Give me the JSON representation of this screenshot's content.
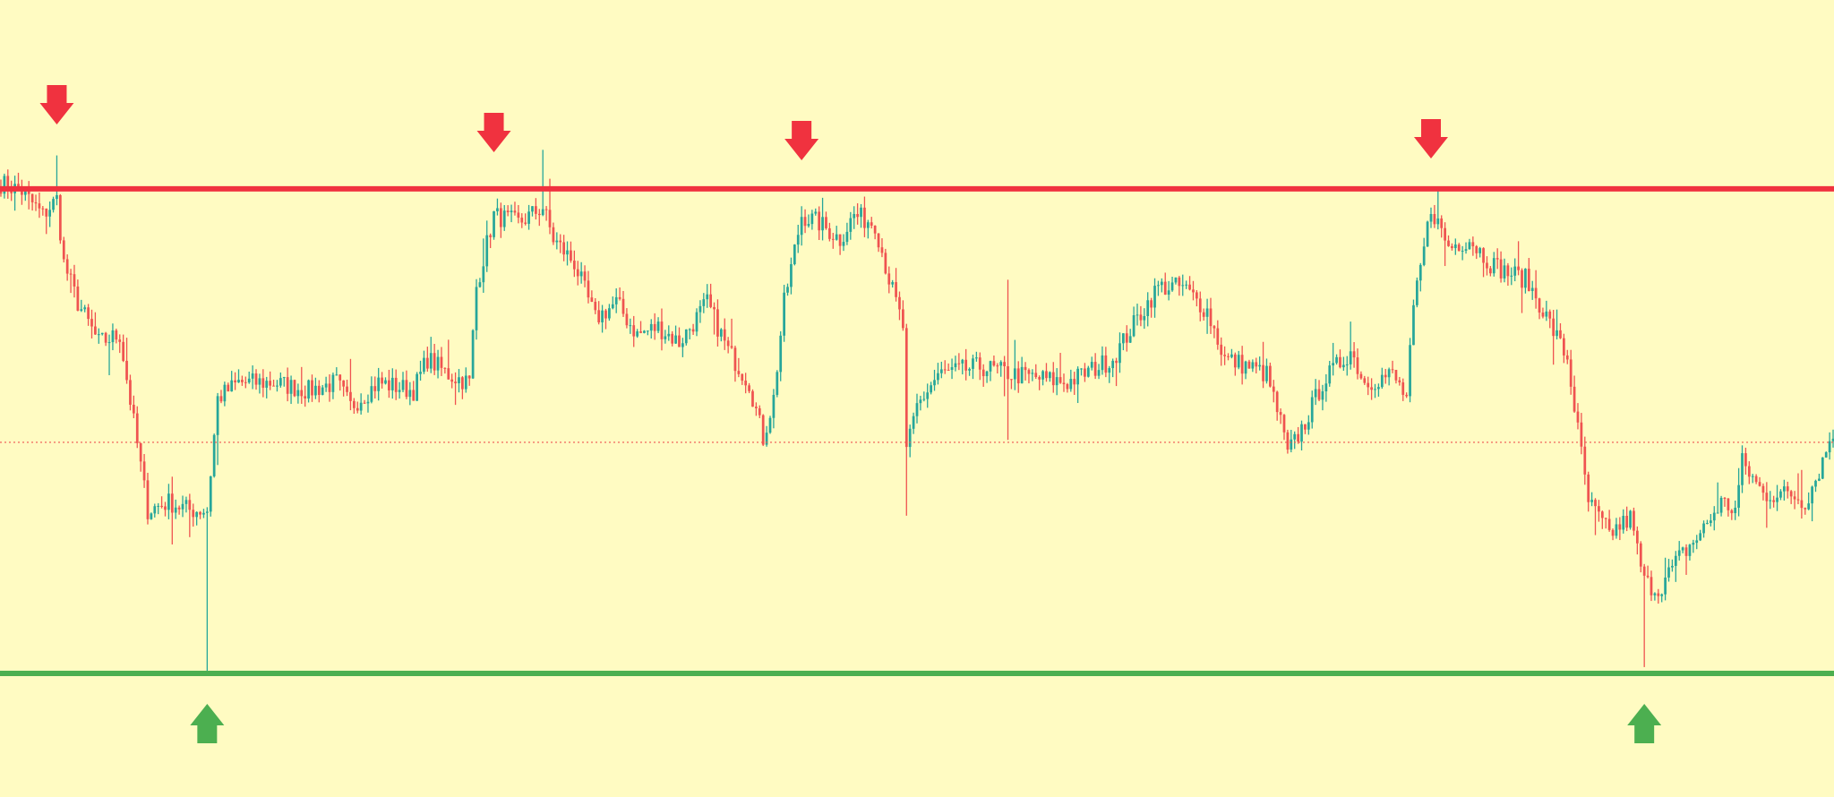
{
  "chart_data": {
    "type": "candlestick",
    "title": "",
    "xlabel": "",
    "ylabel": "",
    "ylim": [
      0,
      100
    ],
    "grid": false,
    "colors": {
      "background": "#fffbc2",
      "up": "#26a69a",
      "down": "#ef5350",
      "resistance": "#f0323f",
      "support": "#4caf50",
      "midline": "#ef5350",
      "down_marker": "#f0323f",
      "up_marker": "#4caf50"
    },
    "levels": {
      "resistance": 76.3,
      "support": 15.5,
      "midline": 44.5
    },
    "markers": {
      "down": [
        {
          "i": 16
        },
        {
          "i": 141
        },
        {
          "i": 229
        },
        {
          "i": 409
        }
      ],
      "up": [
        {
          "i": 59
        },
        {
          "i": 470
        }
      ]
    },
    "anchors": [
      [
        0,
        77
      ],
      [
        6,
        76
      ],
      [
        12,
        73
      ],
      [
        16,
        75
      ],
      [
        18,
        67
      ],
      [
        22,
        62
      ],
      [
        28,
        57
      ],
      [
        34,
        58
      ],
      [
        38,
        47
      ],
      [
        42,
        36
      ],
      [
        48,
        37
      ],
      [
        54,
        36
      ],
      [
        59,
        36
      ],
      [
        62,
        50
      ],
      [
        68,
        52
      ],
      [
        78,
        52
      ],
      [
        88,
        51
      ],
      [
        96,
        52
      ],
      [
        100,
        49
      ],
      [
        108,
        52
      ],
      [
        118,
        51
      ],
      [
        122,
        55
      ],
      [
        128,
        53
      ],
      [
        134,
        52
      ],
      [
        136,
        64
      ],
      [
        141,
        73
      ],
      [
        148,
        72
      ],
      [
        155,
        74
      ],
      [
        158,
        70
      ],
      [
        164,
        67
      ],
      [
        170,
        60
      ],
      [
        176,
        62
      ],
      [
        182,
        58
      ],
      [
        188,
        59
      ],
      [
        194,
        57
      ],
      [
        202,
        62
      ],
      [
        208,
        56
      ],
      [
        214,
        52
      ],
      [
        218,
        45
      ],
      [
        221,
        50
      ],
      [
        224,
        62
      ],
      [
        229,
        73
      ],
      [
        234,
        72
      ],
      [
        240,
        70
      ],
      [
        244,
        73
      ],
      [
        250,
        72
      ],
      [
        254,
        65
      ],
      [
        258,
        59
      ],
      [
        259,
        43
      ],
      [
        262,
        49
      ],
      [
        268,
        53
      ],
      [
        280,
        54
      ],
      [
        290,
        53
      ],
      [
        305,
        52
      ],
      [
        318,
        55
      ],
      [
        325,
        60
      ],
      [
        331,
        64
      ],
      [
        338,
        64
      ],
      [
        345,
        61
      ],
      [
        350,
        55
      ],
      [
        357,
        54
      ],
      [
        362,
        53
      ],
      [
        366,
        47
      ],
      [
        368,
        43
      ],
      [
        373,
        47
      ],
      [
        378,
        52
      ],
      [
        386,
        56
      ],
      [
        390,
        52
      ],
      [
        398,
        53
      ],
      [
        402,
        50
      ],
      [
        404,
        61
      ],
      [
        409,
        74
      ],
      [
        414,
        69
      ],
      [
        420,
        70
      ],
      [
        426,
        67
      ],
      [
        430,
        66
      ],
      [
        436,
        65
      ],
      [
        440,
        62
      ],
      [
        448,
        55
      ],
      [
        454,
        37
      ],
      [
        460,
        33
      ],
      [
        466,
        35
      ],
      [
        470,
        27
      ],
      [
        474,
        26
      ],
      [
        480,
        30
      ],
      [
        486,
        33
      ],
      [
        492,
        37
      ],
      [
        496,
        36
      ],
      [
        498,
        42
      ],
      [
        504,
        38
      ],
      [
        512,
        38
      ],
      [
        516,
        37
      ],
      [
        520,
        41
      ],
      [
        524,
        46
      ]
    ],
    "spikes": [
      {
        "i": 16,
        "high": 80.5
      },
      {
        "i": 59,
        "low": 15.5
      },
      {
        "i": 155,
        "high": 81.2
      },
      {
        "i": 259,
        "low": 35.3
      },
      {
        "i": 288,
        "high": 64.9,
        "low": 44.8
      },
      {
        "i": 470,
        "low": 16.3
      }
    ],
    "n": 525,
    "seed": 7
  }
}
